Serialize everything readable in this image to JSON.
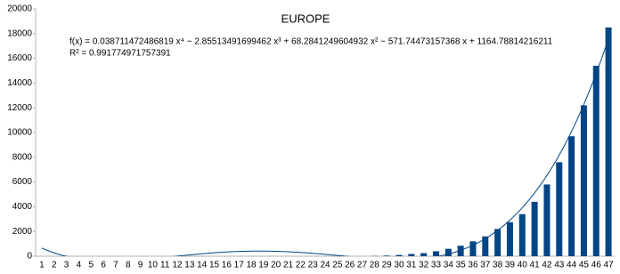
{
  "chart_data": {
    "type": "bar",
    "title": "EUROPE",
    "categories": [
      "1",
      "2",
      "3",
      "4",
      "5",
      "6",
      "7",
      "8",
      "9",
      "10",
      "11",
      "12",
      "13",
      "14",
      "15",
      "16",
      "17",
      "18",
      "19",
      "20",
      "21",
      "22",
      "23",
      "24",
      "25",
      "26",
      "27",
      "28",
      "29",
      "30",
      "31",
      "32",
      "33",
      "34",
      "35",
      "36",
      "37",
      "38",
      "39",
      "40",
      "41",
      "42",
      "43",
      "44",
      "45",
      "46",
      "47"
    ],
    "values": [
      0,
      0,
      0,
      0,
      0,
      0,
      0,
      0,
      0,
      0,
      0,
      0,
      0,
      0,
      0,
      0,
      0,
      0,
      0,
      0,
      0,
      0,
      0,
      0,
      0,
      0,
      0,
      20,
      50,
      100,
      180,
      250,
      400,
      600,
      850,
      1200,
      1600,
      2200,
      2750,
      3400,
      4400,
      5800,
      7600,
      9700,
      12200,
      15400,
      18500
    ],
    "color": "#004586",
    "ylim": [
      0,
      20000
    ],
    "yticks": [
      0,
      2000,
      4000,
      6000,
      8000,
      10000,
      12000,
      14000,
      16000,
      18000,
      20000
    ],
    "trendline": {
      "equation": "f(x) = 0.038711472486819 x⁴ − 2.85513491699462 x³ + 68.2841249604932 x² − 571.74473157368 x + 1164.78814216211",
      "r_squared": "R² = 0.991774971757391",
      "coefficients": [
        0.038711472486819,
        -2.85513491699462,
        68.2841249604932,
        -571.74473157368,
        1164.78814216211
      ],
      "color": "#004586"
    }
  }
}
